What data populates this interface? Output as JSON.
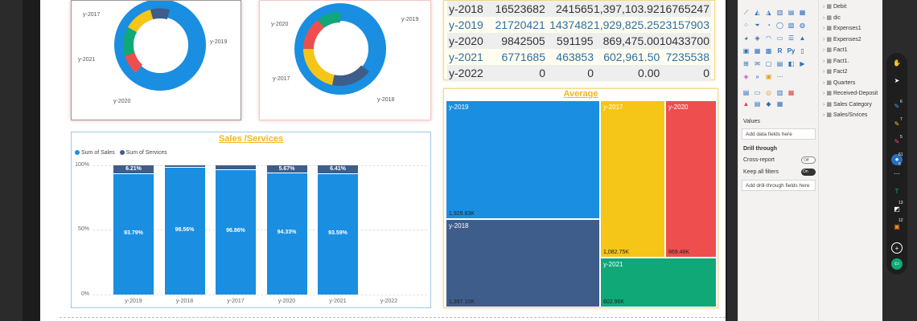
{
  "donut_left": {
    "labels": [
      "y-2017",
      "y-2019",
      "y-2021",
      "y-2020"
    ],
    "colors": [
      "#f5c518",
      "#1a8ee0",
      "#10a877",
      "#ee4e4e",
      "#3f5d8a"
    ]
  },
  "donut_right": {
    "labels": [
      "y-2019",
      "y-2020",
      "y-2017",
      "y-2018"
    ],
    "colors": [
      "#1a8ee0",
      "#3f5d8a",
      "#f5c518",
      "#ee4e4e",
      "#10a877"
    ]
  },
  "table": {
    "rows": [
      {
        "year": "y-2018",
        "sales": "16523682",
        "services": "241565",
        "average": "1,397,103.92",
        "total": "16765247"
      },
      {
        "year": "y-2019",
        "sales": "21720421",
        "services": "1437482",
        "average": "1,929,825.25",
        "total": "23157903"
      },
      {
        "year": "y-2020",
        "sales": "9842505",
        "services": "591195",
        "average": "869,475.00",
        "total": "10433700"
      },
      {
        "year": "y-2021",
        "sales": "6771685",
        "services": "463853",
        "average": "602,961.50",
        "total": "7235538"
      },
      {
        "year": "y-2022",
        "sales": "0",
        "services": "0",
        "average": "0.00",
        "total": "0"
      }
    ]
  },
  "sales_chart": {
    "title": "Sales /Services",
    "legend": [
      "Sum of Sales",
      "Sum of Services"
    ],
    "yticks": [
      "100%",
      "50%",
      "0%"
    ]
  },
  "chart_data": {
    "type": "bar",
    "title": "Sales /Services",
    "categories": [
      "y-2019",
      "y-2018",
      "y-2017",
      "y-2020",
      "y-2021",
      "y-2022"
    ],
    "series": [
      {
        "name": "Sum of Sales",
        "values": [
          93.79,
          98.56,
          96.86,
          94.33,
          93.59,
          0
        ],
        "labels": [
          "93.79%",
          "98.56%",
          "96.86%",
          "94.33%",
          "93.59%",
          ""
        ]
      },
      {
        "name": "Sum of Services",
        "values": [
          6.21,
          1.44,
          3.14,
          5.67,
          6.41,
          0
        ],
        "labels": [
          "6.21%",
          "",
          "",
          "5.67%",
          "6.41%",
          ""
        ]
      }
    ],
    "ylim": [
      0,
      100
    ],
    "stacked": true
  },
  "treemap": {
    "title": "Average",
    "tiles": [
      {
        "name": "y-2019",
        "value": "1,929.83K",
        "color": "#1a8ee0"
      },
      {
        "name": "y-2018",
        "value": "1,397.10K",
        "color": "#3f5d8a"
      },
      {
        "name": "y-2017",
        "value": "1,082.75K",
        "color": "#f5c518"
      },
      {
        "name": "y-2020",
        "value": "869.48K",
        "color": "#ee4e4e"
      },
      {
        "name": "y-2021",
        "value": "602.96K",
        "color": "#10a877"
      }
    ]
  },
  "panel": {
    "values_label": "Values",
    "add_data_fields": "Add data fields here",
    "drill_through": "Drill through",
    "cross_report": "Cross-report",
    "cross_report_state": "Off",
    "keep_all_filters": "Keep all filters",
    "keep_all_filters_state": "On",
    "add_drill_fields": "Add drill-through fields here"
  },
  "fields": [
    "Debit",
    "dic",
    "Expenses1",
    "Expenses2",
    "Fact1",
    "Fact1.",
    "Fact2",
    "Quarters",
    "Received-Deposit",
    "Sales Category",
    "Sales/Srvices"
  ],
  "toolbar_badges": [
    "6",
    "7",
    "5",
    "61",
    "6",
    "13",
    "12"
  ]
}
